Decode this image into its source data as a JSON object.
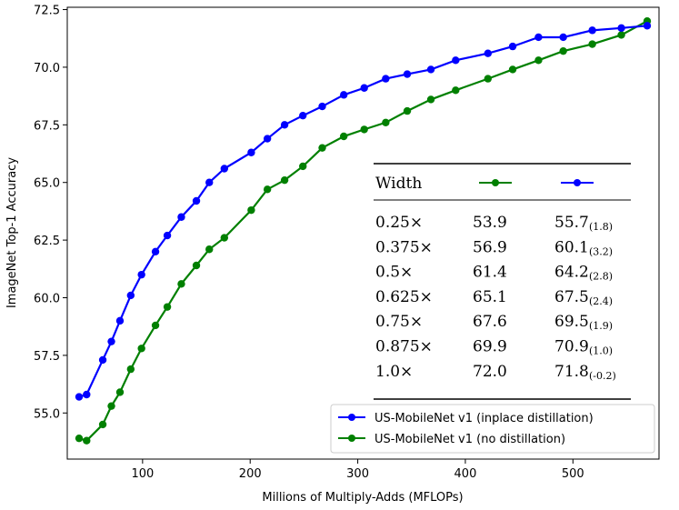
{
  "chart_data": {
    "type": "line",
    "xlabel": "Millions of Multiply-Adds (MFLOPs)",
    "ylabel": "ImageNet Top-1 Accuracy",
    "xlim": [
      30,
      580
    ],
    "ylim": [
      53.0,
      72.6
    ],
    "xticks": [
      100,
      200,
      300,
      400,
      500
    ],
    "yticks": [
      "55.0",
      "57.5",
      "60.0",
      "62.5",
      "65.0",
      "67.5",
      "70.0",
      "72.5"
    ],
    "grid": false,
    "legend_position": "lower-right",
    "series": [
      {
        "name": "US-MobileNet v1 (inplace distillation)",
        "color": "#0000ff",
        "points": [
          [
            41,
            55.7
          ],
          [
            48,
            55.8
          ],
          [
            63,
            57.3
          ],
          [
            71,
            58.1
          ],
          [
            79,
            59.0
          ],
          [
            89,
            60.1
          ],
          [
            99,
            61.0
          ],
          [
            112,
            62.0
          ],
          [
            123,
            62.7
          ],
          [
            136,
            63.5
          ],
          [
            150,
            64.2
          ],
          [
            162,
            65.0
          ],
          [
            176,
            65.6
          ],
          [
            201,
            66.3
          ],
          [
            216,
            66.9
          ],
          [
            232,
            67.5
          ],
          [
            249,
            67.9
          ],
          [
            267,
            68.3
          ],
          [
            287,
            68.8
          ],
          [
            306,
            69.1
          ],
          [
            326,
            69.5
          ],
          [
            346,
            69.7
          ],
          [
            368,
            69.9
          ],
          [
            391,
            70.3
          ],
          [
            421,
            70.6
          ],
          [
            444,
            70.9
          ],
          [
            468,
            71.3
          ],
          [
            491,
            71.3
          ],
          [
            518,
            71.6
          ],
          [
            545,
            71.7
          ],
          [
            569,
            71.8
          ]
        ]
      },
      {
        "name": "US-MobileNet v1 (no distillation)",
        "color": "#008000",
        "points": [
          [
            41,
            53.9
          ],
          [
            48,
            53.8
          ],
          [
            63,
            54.5
          ],
          [
            71,
            55.3
          ],
          [
            79,
            55.9
          ],
          [
            89,
            56.9
          ],
          [
            99,
            57.8
          ],
          [
            112,
            58.8
          ],
          [
            123,
            59.6
          ],
          [
            136,
            60.6
          ],
          [
            150,
            61.4
          ],
          [
            162,
            62.1
          ],
          [
            176,
            62.6
          ],
          [
            201,
            63.8
          ],
          [
            216,
            64.7
          ],
          [
            232,
            65.1
          ],
          [
            249,
            65.7
          ],
          [
            267,
            66.5
          ],
          [
            287,
            67.0
          ],
          [
            306,
            67.3
          ],
          [
            326,
            67.6
          ],
          [
            346,
            68.1
          ],
          [
            368,
            68.6
          ],
          [
            391,
            69.0
          ],
          [
            421,
            69.5
          ],
          [
            444,
            69.9
          ],
          [
            468,
            70.3
          ],
          [
            491,
            70.7
          ],
          [
            518,
            71.0
          ],
          [
            545,
            71.4
          ],
          [
            569,
            72.0
          ]
        ]
      }
    ],
    "table": {
      "header": "Width",
      "rows": [
        {
          "width": "0.25×",
          "no_dist": "53.9",
          "inplace": "55.7",
          "delta": "(1.8)"
        },
        {
          "width": "0.375×",
          "no_dist": "56.9",
          "inplace": "60.1",
          "delta": "(3.2)"
        },
        {
          "width": "0.5×",
          "no_dist": "61.4",
          "inplace": "64.2",
          "delta": "(2.8)"
        },
        {
          "width": "0.625×",
          "no_dist": "65.1",
          "inplace": "67.5",
          "delta": "(2.4)"
        },
        {
          "width": "0.75×",
          "no_dist": "67.6",
          "inplace": "69.5",
          "delta": "(1.9)"
        },
        {
          "width": "0.875×",
          "no_dist": "69.9",
          "inplace": "70.9",
          "delta": "(1.0)"
        },
        {
          "width": "1.0×",
          "no_dist": "72.0",
          "inplace": "71.8",
          "delta": "(-0.2)"
        }
      ]
    }
  }
}
